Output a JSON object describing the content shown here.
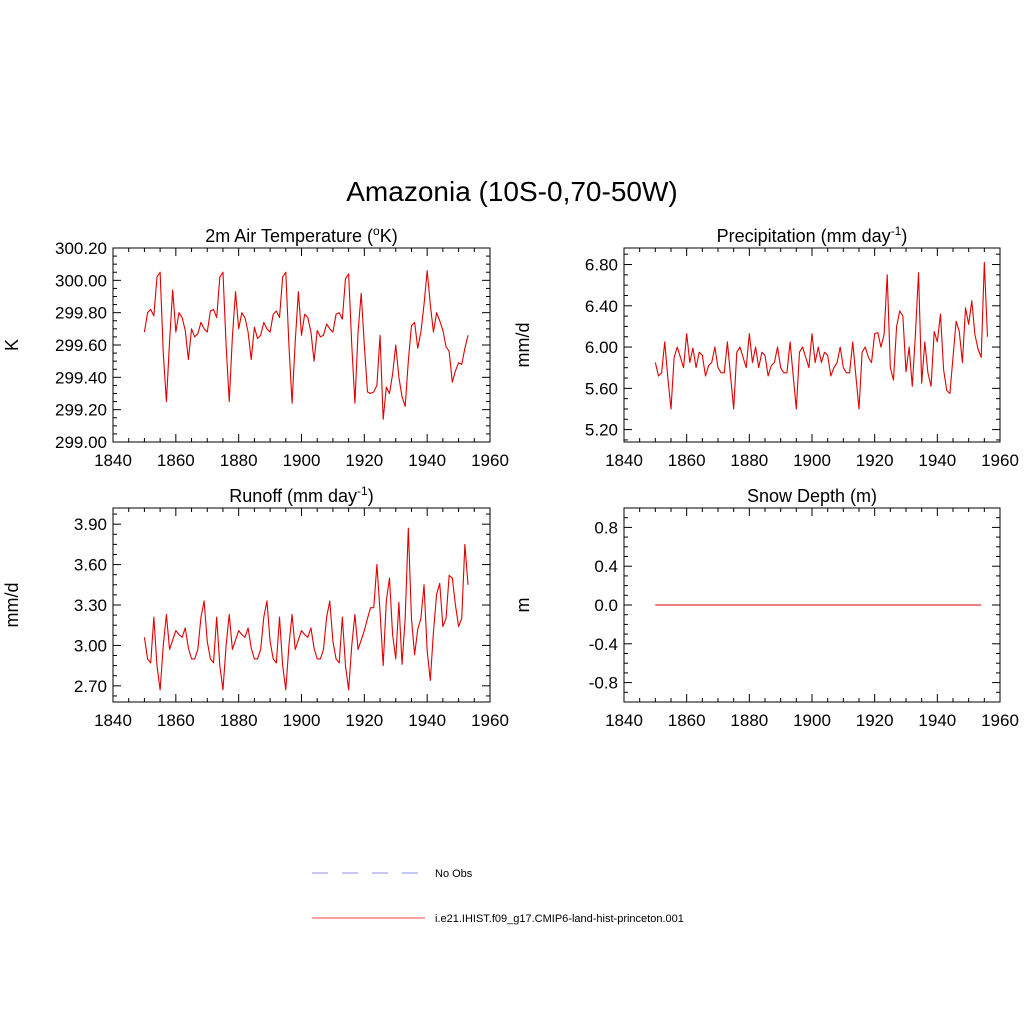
{
  "title": "Amazonia (10S-0,70-50W)",
  "colors": {
    "model": "#e00000",
    "obs": "#a7a7f0",
    "axis": "#000000"
  },
  "legend": [
    {
      "name": "No Obs",
      "style": "dashed",
      "color": "#a7a7f0"
    },
    {
      "name": "i.e21.IHIST.f09_g17.CMIP6-land-hist-princeton.001",
      "style": "solid",
      "color": "#ff6666"
    }
  ],
  "chart_data": [
    {
      "type": "line",
      "title": "2m Air Temperature (",
      "title_sup": "o",
      "title_after": "K)",
      "ylabel": "K",
      "xlabel": "",
      "xlim": [
        1840,
        1960
      ],
      "xticks": [
        1840,
        1860,
        1880,
        1900,
        1920,
        1940,
        1960
      ],
      "xtick_labels": [
        "1840",
        "1860",
        "1880",
        "1900",
        "1920",
        "1940",
        "1960"
      ],
      "ylim": [
        299.0,
        300.2
      ],
      "yticks": [
        299.0,
        299.2,
        299.4,
        299.6,
        299.8,
        300.0,
        300.2
      ],
      "ytick_labels": [
        "299.00",
        "299.20",
        "299.40",
        "299.60",
        "299.80",
        "300.00",
        "300.20"
      ],
      "x_start": 1850,
      "series": [
        {
          "name": "i.e21.IHIST.f09_g17.CMIP6-land-hist-princeton.001",
          "values": [
            299.68,
            299.8,
            299.82,
            299.78,
            300.02,
            300.05,
            299.55,
            299.25,
            299.62,
            299.94,
            299.68,
            299.8,
            299.77,
            299.69,
            299.51,
            299.7,
            299.65,
            299.67,
            299.74,
            299.7,
            299.68,
            299.81,
            299.82,
            299.77,
            300.02,
            300.05,
            299.6,
            299.25,
            299.65,
            299.93,
            299.7,
            299.8,
            299.77,
            299.68,
            299.51,
            299.71,
            299.64,
            299.66,
            299.74,
            299.7,
            299.68,
            299.79,
            299.81,
            299.77,
            300.02,
            300.05,
            299.6,
            299.24,
            299.62,
            299.93,
            299.66,
            299.79,
            299.77,
            299.68,
            299.5,
            299.69,
            299.65,
            299.66,
            299.73,
            299.7,
            299.68,
            299.79,
            299.8,
            299.76,
            300.01,
            300.04,
            299.6,
            299.24,
            299.68,
            299.92,
            299.6,
            299.31,
            299.3,
            299.31,
            299.35,
            299.66,
            299.14,
            299.34,
            299.3,
            299.42,
            299.6,
            299.4,
            299.28,
            299.22,
            299.5,
            299.72,
            299.74,
            299.58,
            299.68,
            299.85,
            300.06,
            299.85,
            299.68,
            299.8,
            299.75,
            299.69,
            299.59,
            299.56,
            299.37,
            299.44,
            299.49,
            299.48,
            299.58,
            299.66
          ]
        }
      ]
    },
    {
      "type": "line",
      "title": "Precipitation (mm day",
      "title_sup": "-1",
      "title_after": ")",
      "ylabel": "mm/d",
      "xlabel": "",
      "xlim": [
        1840,
        1960
      ],
      "xticks": [
        1840,
        1860,
        1880,
        1900,
        1920,
        1940,
        1960
      ],
      "xtick_labels": [
        "1840",
        "1860",
        "1880",
        "1900",
        "1920",
        "1940",
        "1960"
      ],
      "ylim": [
        5.08,
        6.96
      ],
      "yticks": [
        5.2,
        5.6,
        6.0,
        6.4,
        6.8
      ],
      "ytick_labels": [
        "5.20",
        "5.60",
        "6.00",
        "6.40",
        "6.80"
      ],
      "x_start": 1850,
      "series": [
        {
          "name": "i.e21.IHIST.f09_g17.CMIP6-land-hist-princeton.001",
          "values": [
            5.85,
            5.72,
            5.75,
            6.05,
            5.7,
            5.4,
            5.9,
            6.0,
            5.9,
            5.8,
            6.13,
            5.85,
            5.99,
            5.8,
            5.95,
            5.92,
            5.72,
            5.82,
            5.85,
            6.0,
            5.8,
            5.75,
            5.75,
            6.05,
            5.72,
            5.4,
            5.95,
            6.0,
            5.9,
            5.8,
            6.13,
            5.85,
            6.0,
            5.8,
            5.95,
            5.92,
            5.72,
            5.82,
            5.85,
            6.0,
            5.8,
            5.75,
            5.75,
            6.05,
            5.72,
            5.4,
            5.95,
            6.0,
            5.9,
            5.8,
            6.13,
            5.85,
            6.0,
            5.85,
            5.95,
            5.92,
            5.72,
            5.8,
            5.85,
            6.0,
            5.8,
            5.75,
            5.75,
            6.05,
            5.72,
            5.4,
            5.95,
            6.0,
            5.9,
            5.85,
            6.13,
            6.14,
            6.0,
            6.12,
            6.7,
            5.8,
            5.68,
            6.2,
            6.35,
            6.3,
            5.76,
            6.0,
            5.62,
            6.12,
            6.72,
            5.65,
            6.05,
            5.75,
            5.62,
            6.15,
            6.05,
            6.32,
            5.78,
            5.58,
            5.55,
            5.9,
            6.25,
            6.15,
            5.85,
            6.38,
            6.22,
            6.45,
            6.12,
            5.98,
            5.9,
            6.82,
            6.1
          ]
        }
      ]
    },
    {
      "type": "line",
      "title": "Runoff (mm day",
      "title_sup": "-1",
      "title_after": ")",
      "ylabel": "mm/d",
      "xlabel": "",
      "xlim": [
        1840,
        1960
      ],
      "xticks": [
        1840,
        1860,
        1880,
        1900,
        1920,
        1940,
        1960
      ],
      "xtick_labels": [
        "1840",
        "1860",
        "1880",
        "1900",
        "1920",
        "1940",
        "1960"
      ],
      "ylim": [
        2.58,
        4.02
      ],
      "yticks": [
        2.7,
        3.0,
        3.3,
        3.6,
        3.9
      ],
      "ytick_labels": [
        "2.70",
        "3.00",
        "3.30",
        "3.60",
        "3.90"
      ],
      "x_start": 1850,
      "series": [
        {
          "name": "i.e21.IHIST.f09_g17.CMIP6-land-hist-princeton.001",
          "values": [
            3.06,
            2.9,
            2.87,
            3.21,
            2.85,
            2.67,
            3.0,
            3.23,
            2.97,
            3.04,
            3.11,
            3.08,
            3.06,
            3.13,
            2.98,
            2.9,
            2.9,
            2.97,
            3.21,
            3.33,
            3.03,
            2.9,
            2.87,
            3.21,
            2.85,
            2.67,
            3.0,
            3.23,
            2.97,
            3.04,
            3.11,
            3.08,
            3.06,
            3.13,
            2.98,
            2.9,
            2.9,
            2.97,
            3.21,
            3.33,
            3.03,
            2.9,
            2.87,
            3.21,
            2.85,
            2.67,
            3.0,
            3.23,
            2.97,
            3.04,
            3.11,
            3.08,
            3.06,
            3.13,
            2.98,
            2.9,
            2.9,
            2.97,
            3.21,
            3.33,
            3.03,
            2.9,
            2.87,
            3.21,
            2.85,
            2.67,
            3.0,
            3.23,
            2.97,
            3.04,
            3.11,
            3.2,
            3.28,
            3.28,
            3.6,
            3.25,
            2.85,
            3.33,
            3.5,
            3.08,
            2.9,
            3.32,
            2.86,
            3.2,
            3.87,
            3.2,
            2.93,
            3.12,
            3.2,
            3.45,
            2.96,
            2.74,
            3.1,
            3.38,
            3.46,
            3.14,
            3.2,
            3.52,
            3.5,
            3.3,
            3.14,
            3.2,
            3.75,
            3.45
          ]
        }
      ]
    },
    {
      "type": "line",
      "title": "Snow Depth (m)",
      "title_sup": "",
      "title_after": "",
      "ylabel": "m",
      "xlabel": "",
      "xlim": [
        1840,
        1960
      ],
      "xticks": [
        1840,
        1860,
        1880,
        1900,
        1920,
        1940,
        1960
      ],
      "xtick_labels": [
        "1840",
        "1860",
        "1880",
        "1900",
        "1920",
        "1940",
        "1960"
      ],
      "ylim": [
        -1.0,
        1.0
      ],
      "yticks": [
        -0.8,
        -0.4,
        0.0,
        0.4,
        0.8
      ],
      "ytick_labels": [
        "-0.8",
        "-0.4",
        "0.0",
        "0.4",
        "0.8"
      ],
      "x_start": 1850,
      "series": [
        {
          "name": "i.e21.IHIST.f09_g17.CMIP6-land-hist-princeton.001",
          "values": [
            0,
            0,
            0,
            0,
            0,
            0,
            0,
            0,
            0,
            0,
            0,
            0,
            0,
            0,
            0,
            0,
            0,
            0,
            0,
            0,
            0,
            0,
            0,
            0,
            0,
            0,
            0,
            0,
            0,
            0,
            0,
            0,
            0,
            0,
            0,
            0,
            0,
            0,
            0,
            0,
            0,
            0,
            0,
            0,
            0,
            0,
            0,
            0,
            0,
            0,
            0,
            0,
            0,
            0,
            0,
            0,
            0,
            0,
            0,
            0,
            0,
            0,
            0,
            0,
            0,
            0,
            0,
            0,
            0,
            0,
            0,
            0,
            0,
            0,
            0,
            0,
            0,
            0,
            0,
            0,
            0,
            0,
            0,
            0,
            0,
            0,
            0,
            0,
            0,
            0,
            0,
            0,
            0,
            0,
            0,
            0,
            0,
            0,
            0,
            0,
            0,
            0,
            0,
            0,
            0
          ]
        }
      ]
    }
  ]
}
